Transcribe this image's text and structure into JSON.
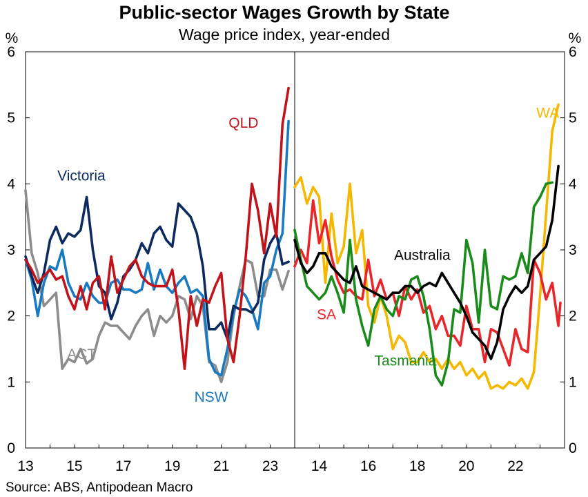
{
  "title": "Public-sector Wages Growth by State",
  "subtitle": "Wage price index, year-ended",
  "source": "Source: ABS, Antipodean Macro",
  "chart_data": {
    "type": "line",
    "y_unit_left": "%",
    "y_unit_right": "%",
    "ylim": [
      0,
      6
    ],
    "yticks": [
      "0",
      "1",
      "2",
      "3",
      "4",
      "5",
      "6"
    ],
    "grid": false,
    "panels": [
      {
        "name": "left",
        "xlim": [
          2013.0,
          2024.0
        ],
        "xticks": [
          {
            "v": 2013,
            "label": "13"
          },
          {
            "v": 2015,
            "label": "15"
          },
          {
            "v": 2017,
            "label": "17"
          },
          {
            "v": 2019,
            "label": "19"
          },
          {
            "v": 2021,
            "label": "21"
          },
          {
            "v": 2023,
            "label": "23"
          }
        ],
        "x_start": 2013.0,
        "x_step": 0.25,
        "series": [
          {
            "name": "ACT",
            "color": "#8c8c8c",
            "label_at": [
              2014.7,
              1.35
            ],
            "values": [
              3.9,
              2.95,
              2.65,
              2.15,
              2.25,
              2.35,
              1.2,
              1.35,
              1.3,
              1.5,
              1.28,
              1.35,
              1.7,
              1.9,
              1.85,
              1.85,
              1.75,
              1.65,
              1.85,
              2.0,
              2.1,
              1.7,
              2.0,
              1.9,
              2.0,
              2.3,
              2.25,
              1.95,
              2.3,
              2.15,
              1.3,
              1.25,
              1.0,
              1.3,
              2.0,
              2.45,
              2.85,
              2.8,
              2.3,
              2.3,
              2.7,
              2.7,
              2.4,
              2.68
            ]
          },
          {
            "name": "NSW",
            "color": "#1a7ac1",
            "label_at": [
              2019.9,
              0.7
            ],
            "values": [
              2.85,
              2.55,
              2.0,
              2.5,
              2.75,
              2.7,
              3.0,
              2.5,
              2.3,
              2.25,
              2.5,
              2.3,
              2.2,
              2.2,
              2.5,
              2.55,
              2.4,
              2.4,
              2.35,
              2.4,
              2.8,
              2.4,
              2.7,
              2.45,
              2.35,
              2.5,
              2.6,
              2.35,
              2.4,
              2.3,
              1.35,
              1.15,
              1.1,
              1.5,
              2.05,
              2.4,
              2.3,
              2.1,
              1.8,
              2.5,
              2.6,
              3.0,
              3.25,
              4.95
            ]
          },
          {
            "name": "Victoria",
            "color": "#0c2a5e",
            "label_at": [
              2014.3,
              4.05
            ],
            "values": [
              2.9,
              2.6,
              2.35,
              2.65,
              3.15,
              3.35,
              3.1,
              3.25,
              3.2,
              3.3,
              3.8,
              3.0,
              2.45,
              2.35,
              1.95,
              2.2,
              2.6,
              2.7,
              2.85,
              3.1,
              2.95,
              3.25,
              3.35,
              3.15,
              3.05,
              3.7,
              3.6,
              3.5,
              3.25,
              2.75,
              1.8,
              1.8,
              1.9,
              1.65,
              2.15,
              2.1,
              2.1,
              2.05,
              2.2,
              2.85,
              3.1,
              3.25,
              2.78,
              2.82
            ]
          },
          {
            "name": "QLD",
            "color": "#c0141a",
            "label_at": [
              2021.3,
              4.85
            ],
            "values": [
              2.85,
              2.7,
              2.5,
              2.6,
              2.7,
              2.55,
              2.6,
              2.3,
              2.1,
              2.45,
              2.1,
              2.5,
              2.6,
              2.1,
              2.9,
              2.35,
              2.55,
              2.75,
              2.85,
              2.6,
              2.5,
              2.45,
              2.45,
              2.45,
              2.7,
              2.1,
              1.2,
              2.3,
              1.85,
              2.25,
              2.2,
              2.45,
              2.65,
              1.65,
              1.3,
              2.0,
              2.9,
              4.0,
              3.6,
              2.95,
              3.7,
              3.2,
              4.9,
              5.45
            ]
          }
        ]
      },
      {
        "name": "right",
        "xlim": [
          2013.0,
          2024.0
        ],
        "xticks": [
          {
            "v": 2014,
            "label": "14"
          },
          {
            "v": 2016,
            "label": "16"
          },
          {
            "v": 2018,
            "label": "18"
          },
          {
            "v": 2020,
            "label": "20"
          },
          {
            "v": 2022,
            "label": "22"
          }
        ],
        "x_start": 2013.0,
        "x_step": 0.25,
        "series": [
          {
            "name": "WA",
            "color": "#f5b800",
            "label_at": [
              2022.85,
              5.0
            ],
            "values": [
              3.95,
              4.1,
              3.7,
              3.95,
              3.8,
              2.5,
              3.55,
              2.8,
              3.05,
              4.0,
              2.95,
              3.3,
              2.15,
              1.9,
              2.3,
              2.0,
              1.5,
              1.7,
              1.6,
              1.3,
              1.3,
              1.45,
              1.3,
              1.35,
              1.2,
              1.35,
              1.2,
              1.3,
              1.1,
              1.2,
              1.05,
              1.15,
              0.9,
              0.95,
              0.9,
              1.0,
              0.95,
              1.05,
              0.9,
              1.15,
              2.3,
              3.55,
              4.8,
              5.2
            ]
          },
          {
            "name": "SA",
            "color": "#e8262a",
            "label_at": [
              2013.9,
              1.95
            ],
            "values": [
              2.75,
              3.0,
              2.8,
              3.75,
              3.1,
              3.45,
              2.9,
              2.55,
              2.35,
              2.4,
              2.3,
              2.25,
              2.85,
              2.3,
              2.55,
              2.25,
              2.35,
              2.0,
              2.45,
              2.25,
              2.4,
              2.05,
              2.15,
              1.8,
              2.0,
              1.7,
              1.7,
              1.55,
              2.15,
              1.8,
              1.8,
              1.3,
              1.8,
              1.75,
              1.5,
              1.25,
              1.8,
              1.5,
              1.45,
              2.85,
              2.65,
              2.25,
              2.5,
              1.85,
              2.2
            ]
          },
          {
            "name": "Tasmania",
            "color": "#1a8a1a",
            "label_at": [
              2016.25,
              1.25
            ],
            "values": [
              3.3,
              2.85,
              2.45,
              2.35,
              2.25,
              2.35,
              2.6,
              2.35,
              2.05,
              3.15,
              2.25,
              1.85,
              1.55,
              2.1,
              2.3,
              2.1,
              2.0,
              2.3,
              2.25,
              2.55,
              2.6,
              2.3,
              1.8,
              1.1,
              0.95,
              1.3,
              2.1,
              2.05,
              3.15,
              2.8,
              1.9,
              3.0,
              2.15,
              2.1,
              2.6,
              2.55,
              2.6,
              2.95,
              2.65,
              3.65,
              3.8,
              4.0,
              4.02
            ]
          },
          {
            "name": "Australia",
            "color": "#000000",
            "label_at": [
              2017.05,
              2.85
            ],
            "values": [
              3.15,
              2.8,
              2.65,
              2.75,
              2.95,
              2.95,
              2.75,
              2.65,
              2.55,
              2.5,
              2.75,
              2.45,
              2.4,
              2.35,
              2.3,
              2.25,
              2.35,
              2.35,
              2.45,
              2.45,
              2.35,
              2.45,
              2.5,
              2.45,
              2.65,
              2.5,
              2.35,
              2.2,
              2.0,
              1.75,
              1.65,
              1.55,
              1.35,
              1.6,
              2.1,
              2.3,
              2.45,
              2.35,
              2.45,
              2.85,
              2.95,
              3.05,
              3.45,
              4.27
            ]
          }
        ]
      }
    ]
  }
}
